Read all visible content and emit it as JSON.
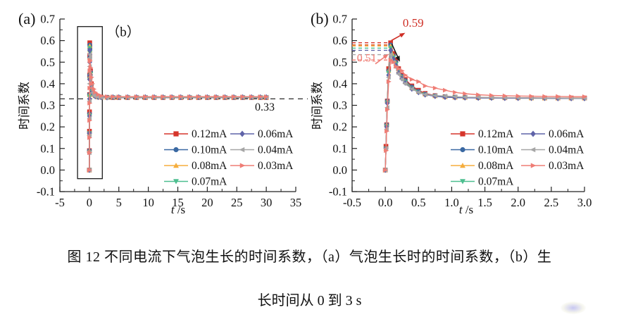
{
  "page": {
    "background": "#ffffff"
  },
  "caption": {
    "line1": "图 12 不同电流下气泡生长的时间系数，（a）气泡生长时的时间系数，（b）生",
    "line2": "长时间从 0 到 3 s"
  },
  "chart_data": [
    {
      "type": "line",
      "panel_label": "(a)",
      "inner_label": "（b）",
      "xlabel": "t /s",
      "ylabel": "时间系数",
      "xlim": [
        -5,
        35
      ],
      "ylim": [
        -0.1,
        0.7
      ],
      "x_ticks": [
        "-5",
        "0",
        "5",
        "10",
        "15",
        "20",
        "25",
        "30",
        "35"
      ],
      "y_ticks": [
        "-0.1",
        "0.0",
        "0.1",
        "0.2",
        "0.3",
        "0.4",
        "0.5",
        "0.6",
        "0.7"
      ],
      "x_minor_step": 2.5,
      "y_minor_step": 0.05,
      "grid": false,
      "legend_position": "inside-center-right",
      "ref_line": {
        "value": 0.33,
        "label": "0.33",
        "style": "dashed",
        "color": "#3c3c3c"
      },
      "inset_box": {
        "x0": -2.0,
        "x1": 2.2,
        "y0": -0.04,
        "y1": 0.665
      },
      "x": [
        0,
        0.01,
        0.02,
        0.03,
        0.04,
        0.05,
        0.06,
        0.07,
        0.1,
        0.2,
        0.35,
        0.5,
        0.75,
        1,
        1.5,
        2,
        3,
        4,
        5,
        6.5,
        8,
        9.5,
        11,
        12.5,
        14,
        15.5,
        17,
        18.5,
        20,
        21.5,
        23,
        24.5,
        26,
        27.5,
        29,
        30
      ],
      "series": [
        {
          "name": "0.12mA",
          "color": "#d6352b",
          "marker": "square",
          "values": [
            0,
            0.09,
            0.18,
            0.27,
            0.35,
            0.44,
            0.53,
            0.59,
            0.57,
            0.46,
            0.4,
            0.37,
            0.352,
            0.345,
            0.34,
            0.338,
            0.337,
            0.336,
            0.336,
            0.336,
            0.336,
            0.336,
            0.336,
            0.336,
            0.336,
            0.336,
            0.336,
            0.336,
            0.336,
            0.336,
            0.336,
            0.336,
            0.336,
            0.336,
            0.336,
            0.336
          ]
        },
        {
          "name": "0.10mA",
          "color": "#3a68a2",
          "marker": "circle",
          "values": [
            0,
            0.09,
            0.17,
            0.26,
            0.35,
            0.44,
            0.52,
            0.58,
            0.56,
            0.455,
            0.395,
            0.368,
            0.35,
            0.344,
            0.34,
            0.338,
            0.337,
            0.336,
            0.336,
            0.336,
            0.336,
            0.336,
            0.336,
            0.336,
            0.336,
            0.336,
            0.336,
            0.336,
            0.336,
            0.336,
            0.336,
            0.336,
            0.336,
            0.336,
            0.336,
            0.336
          ]
        },
        {
          "name": "0.08mA",
          "color": "#f5ad3d",
          "marker": "triangle-up",
          "values": [
            0,
            0.09,
            0.17,
            0.26,
            0.35,
            0.43,
            0.52,
            0.575,
            0.555,
            0.45,
            0.39,
            0.365,
            0.35,
            0.343,
            0.339,
            0.337,
            0.336,
            0.337,
            0.337,
            0.337,
            0.337,
            0.337,
            0.337,
            0.337,
            0.337,
            0.337,
            0.337,
            0.337,
            0.337,
            0.337,
            0.337,
            0.337,
            0.337,
            0.337,
            0.337,
            0.337
          ]
        },
        {
          "name": "0.07mA",
          "color": "#4cbe8f",
          "marker": "triangle-down",
          "values": [
            0,
            0.08,
            0.17,
            0.25,
            0.34,
            0.42,
            0.51,
            0.565,
            0.545,
            0.445,
            0.388,
            0.363,
            0.349,
            0.342,
            0.339,
            0.337,
            0.336,
            0.337,
            0.337,
            0.337,
            0.337,
            0.337,
            0.337,
            0.337,
            0.337,
            0.337,
            0.337,
            0.337,
            0.337,
            0.337,
            0.337,
            0.337,
            0.337,
            0.337,
            0.337,
            0.337
          ]
        },
        {
          "name": "0.06mA",
          "color": "#5f63a8",
          "marker": "diamond",
          "values": [
            0,
            0.08,
            0.17,
            0.25,
            0.33,
            0.42,
            0.5,
            0.555,
            0.535,
            0.44,
            0.385,
            0.36,
            0.348,
            0.341,
            0.338,
            0.337,
            0.336,
            0.338,
            0.338,
            0.338,
            0.338,
            0.338,
            0.338,
            0.338,
            0.338,
            0.338,
            0.338,
            0.338,
            0.338,
            0.338,
            0.338,
            0.338,
            0.338,
            0.338,
            0.338,
            0.338
          ]
        },
        {
          "name": "0.04mA",
          "color": "#a6a6a6",
          "marker": "triangle-left",
          "values": [
            0,
            0.08,
            0.16,
            0.24,
            0.32,
            0.4,
            0.48,
            0.535,
            0.52,
            0.43,
            0.38,
            0.358,
            0.347,
            0.341,
            0.338,
            0.336,
            0.335,
            0.338,
            0.338,
            0.338,
            0.338,
            0.338,
            0.338,
            0.338,
            0.338,
            0.338,
            0.338,
            0.338,
            0.338,
            0.338,
            0.338,
            0.338,
            0.338,
            0.338,
            0.338,
            0.338
          ]
        },
        {
          "name": "0.03mA",
          "color": "#ef7d75",
          "marker": "triangle-right",
          "values": [
            0,
            0.08,
            0.15,
            0.23,
            0.31,
            0.38,
            0.46,
            0.51,
            0.505,
            0.475,
            0.43,
            0.4,
            0.375,
            0.36,
            0.35,
            0.344,
            0.34,
            0.34,
            0.34,
            0.34,
            0.34,
            0.34,
            0.34,
            0.34,
            0.34,
            0.34,
            0.34,
            0.34,
            0.34,
            0.34,
            0.34,
            0.34,
            0.34,
            0.34,
            0.34,
            0.34
          ]
        }
      ]
    },
    {
      "type": "line",
      "panel_label": "(b)",
      "xlabel": "t /s",
      "ylabel": "时间系数",
      "xlim": [
        -0.5,
        3.0
      ],
      "ylim": [
        -0.1,
        0.7
      ],
      "x_ticks": [
        "-0.5",
        "0.0",
        "0.5",
        "1.0",
        "1.5",
        "2.0",
        "2.5",
        "3.0"
      ],
      "y_ticks": [
        "-0.1",
        "0.0",
        "0.1",
        "0.2",
        "0.3",
        "0.4",
        "0.5",
        "0.6",
        "0.7"
      ],
      "x_minor_step": 0.25,
      "y_minor_step": 0.05,
      "grid": false,
      "legend_position": "inside-center-right",
      "peak_guides": [
        {
          "y": 0.59,
          "color": "#d6352b"
        },
        {
          "y": 0.58,
          "color": "#e0622f"
        },
        {
          "y": 0.575,
          "color": "#f5ad3d"
        },
        {
          "y": 0.565,
          "color": "#4cbe8f"
        },
        {
          "y": 0.555,
          "color": "#5f63a8"
        },
        {
          "y": 0.535,
          "color": "#a6a6a6"
        },
        {
          "y": 0.51,
          "color": "#ef7d75"
        }
      ],
      "annotation_labels": [
        {
          "text": "0.59",
          "color": "#cf2f26",
          "x": 0.42,
          "y": 0.664,
          "size": 17
        },
        {
          "text": "0.51",
          "color": "#ef7d75",
          "x": -0.28,
          "y": 0.503,
          "size": 16
        }
      ],
      "annotation_arrows": [
        {
          "color": "#cf2f26",
          "from": [
            0.09,
            0.6
          ],
          "to": [
            0.3,
            0.636
          ]
        },
        {
          "color": "#ef7d75",
          "from": [
            -0.15,
            0.492
          ],
          "to": [
            0.05,
            0.538
          ]
        },
        {
          "color": "#1a1a1a",
          "from": [
            0.1,
            0.583
          ],
          "to": [
            0.22,
            0.502
          ]
        }
      ],
      "x": [
        0,
        0.01,
        0.02,
        0.03,
        0.05,
        0.08,
        0.12,
        0.16,
        0.2,
        0.25,
        0.3,
        0.4,
        0.5,
        0.6,
        0.75,
        0.9,
        1.05,
        1.2,
        1.4,
        1.6,
        1.8,
        2.0,
        2.2,
        2.4,
        2.6,
        2.8,
        3.0
      ],
      "series": [
        {
          "name": "0.12mA",
          "color": "#d6352b",
          "marker": "square",
          "values": [
            0,
            0.11,
            0.21,
            0.32,
            0.47,
            0.59,
            0.54,
            0.51,
            0.47,
            0.44,
            0.42,
            0.39,
            0.37,
            0.355,
            0.345,
            0.34,
            0.338,
            0.337,
            0.336,
            0.336,
            0.335,
            0.335,
            0.335,
            0.334,
            0.334,
            0.334,
            0.334
          ]
        },
        {
          "name": "0.10mA",
          "color": "#3a68a2",
          "marker": "circle",
          "values": [
            0,
            0.1,
            0.21,
            0.32,
            0.46,
            0.58,
            0.53,
            0.5,
            0.465,
            0.435,
            0.415,
            0.385,
            0.365,
            0.352,
            0.344,
            0.34,
            0.338,
            0.336,
            0.335,
            0.335,
            0.334,
            0.334,
            0.334,
            0.333,
            0.333,
            0.333,
            0.333
          ]
        },
        {
          "name": "0.08mA",
          "color": "#f5ad3d",
          "marker": "triangle-up",
          "values": [
            0,
            0.1,
            0.21,
            0.32,
            0.46,
            0.575,
            0.53,
            0.495,
            0.46,
            0.43,
            0.41,
            0.38,
            0.363,
            0.351,
            0.343,
            0.339,
            0.337,
            0.336,
            0.335,
            0.334,
            0.334,
            0.334,
            0.333,
            0.333,
            0.333,
            0.333,
            0.333
          ]
        },
        {
          "name": "0.07mA",
          "color": "#4cbe8f",
          "marker": "triangle-down",
          "values": [
            0,
            0.1,
            0.2,
            0.31,
            0.45,
            0.565,
            0.52,
            0.49,
            0.455,
            0.428,
            0.407,
            0.378,
            0.361,
            0.35,
            0.342,
            0.338,
            0.336,
            0.335,
            0.335,
            0.334,
            0.334,
            0.333,
            0.333,
            0.333,
            0.333,
            0.332,
            0.332
          ]
        },
        {
          "name": "0.06mA",
          "color": "#5f63a8",
          "marker": "diamond",
          "values": [
            0,
            0.1,
            0.2,
            0.31,
            0.44,
            0.555,
            0.515,
            0.485,
            0.45,
            0.424,
            0.404,
            0.376,
            0.36,
            0.349,
            0.342,
            0.338,
            0.336,
            0.335,
            0.334,
            0.334,
            0.333,
            0.333,
            0.333,
            0.333,
            0.332,
            0.332,
            0.332
          ]
        },
        {
          "name": "0.04mA",
          "color": "#a6a6a6",
          "marker": "triangle-left",
          "values": [
            0,
            0.1,
            0.19,
            0.29,
            0.43,
            0.535,
            0.5,
            0.475,
            0.445,
            0.42,
            0.4,
            0.376,
            0.36,
            0.35,
            0.345,
            0.343,
            0.34,
            0.338,
            0.337,
            0.336,
            0.335,
            0.335,
            0.334,
            0.334,
            0.334,
            0.333,
            0.333
          ]
        },
        {
          "name": "0.03mA",
          "color": "#ef7d75",
          "marker": "triangle-right",
          "values": [
            0,
            0.09,
            0.18,
            0.28,
            0.41,
            0.51,
            0.5,
            0.48,
            0.47,
            0.46,
            0.44,
            0.42,
            0.41,
            0.39,
            0.38,
            0.37,
            0.36,
            0.354,
            0.349,
            0.346,
            0.344,
            0.343,
            0.342,
            0.341,
            0.341,
            0.34,
            0.34
          ]
        }
      ]
    }
  ]
}
